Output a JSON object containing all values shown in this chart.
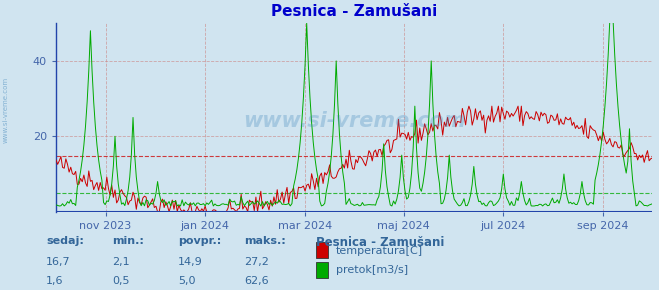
{
  "title": "Pesnica - Zamušani",
  "bg_color": "#d0e4f0",
  "plot_bg_color": "#d0e4f0",
  "temp_color": "#cc0000",
  "flow_color": "#00aa00",
  "axis_color": "#4466aa",
  "grid_color_v": "#cc8888",
  "grid_color_h_red": "#cc6666",
  "grid_color_h_green": "#66aa66",
  "temp_hline": 14.9,
  "flow_hline": 5.0,
  "ymin": 0,
  "ymax": 50,
  "yticks": [
    20,
    40
  ],
  "watermark": "www.si-vreme.com",
  "table_headers": [
    "sedaj:",
    "min.:",
    "povpr.:",
    "maks.:"
  ],
  "table_row1": [
    "16,7",
    "2,1",
    "14,9",
    "27,2"
  ],
  "table_row2": [
    "1,6",
    "0,5",
    "5,0",
    "62,6"
  ],
  "legend_title": "Pesnica - Zamušani",
  "legend_items": [
    "temperatura[C]",
    "pretok[m3/s]"
  ],
  "legend_colors": [
    "#cc0000",
    "#00aa00"
  ],
  "xticklabels": [
    "nov 2023",
    "jan 2024",
    "mar 2024",
    "maj 2024",
    "jul 2024",
    "sep 2024"
  ],
  "xtick_fracs": [
    0.083,
    0.25,
    0.417,
    0.583,
    0.75,
    0.917
  ],
  "figsize": [
    6.59,
    2.9
  ],
  "dpi": 100
}
